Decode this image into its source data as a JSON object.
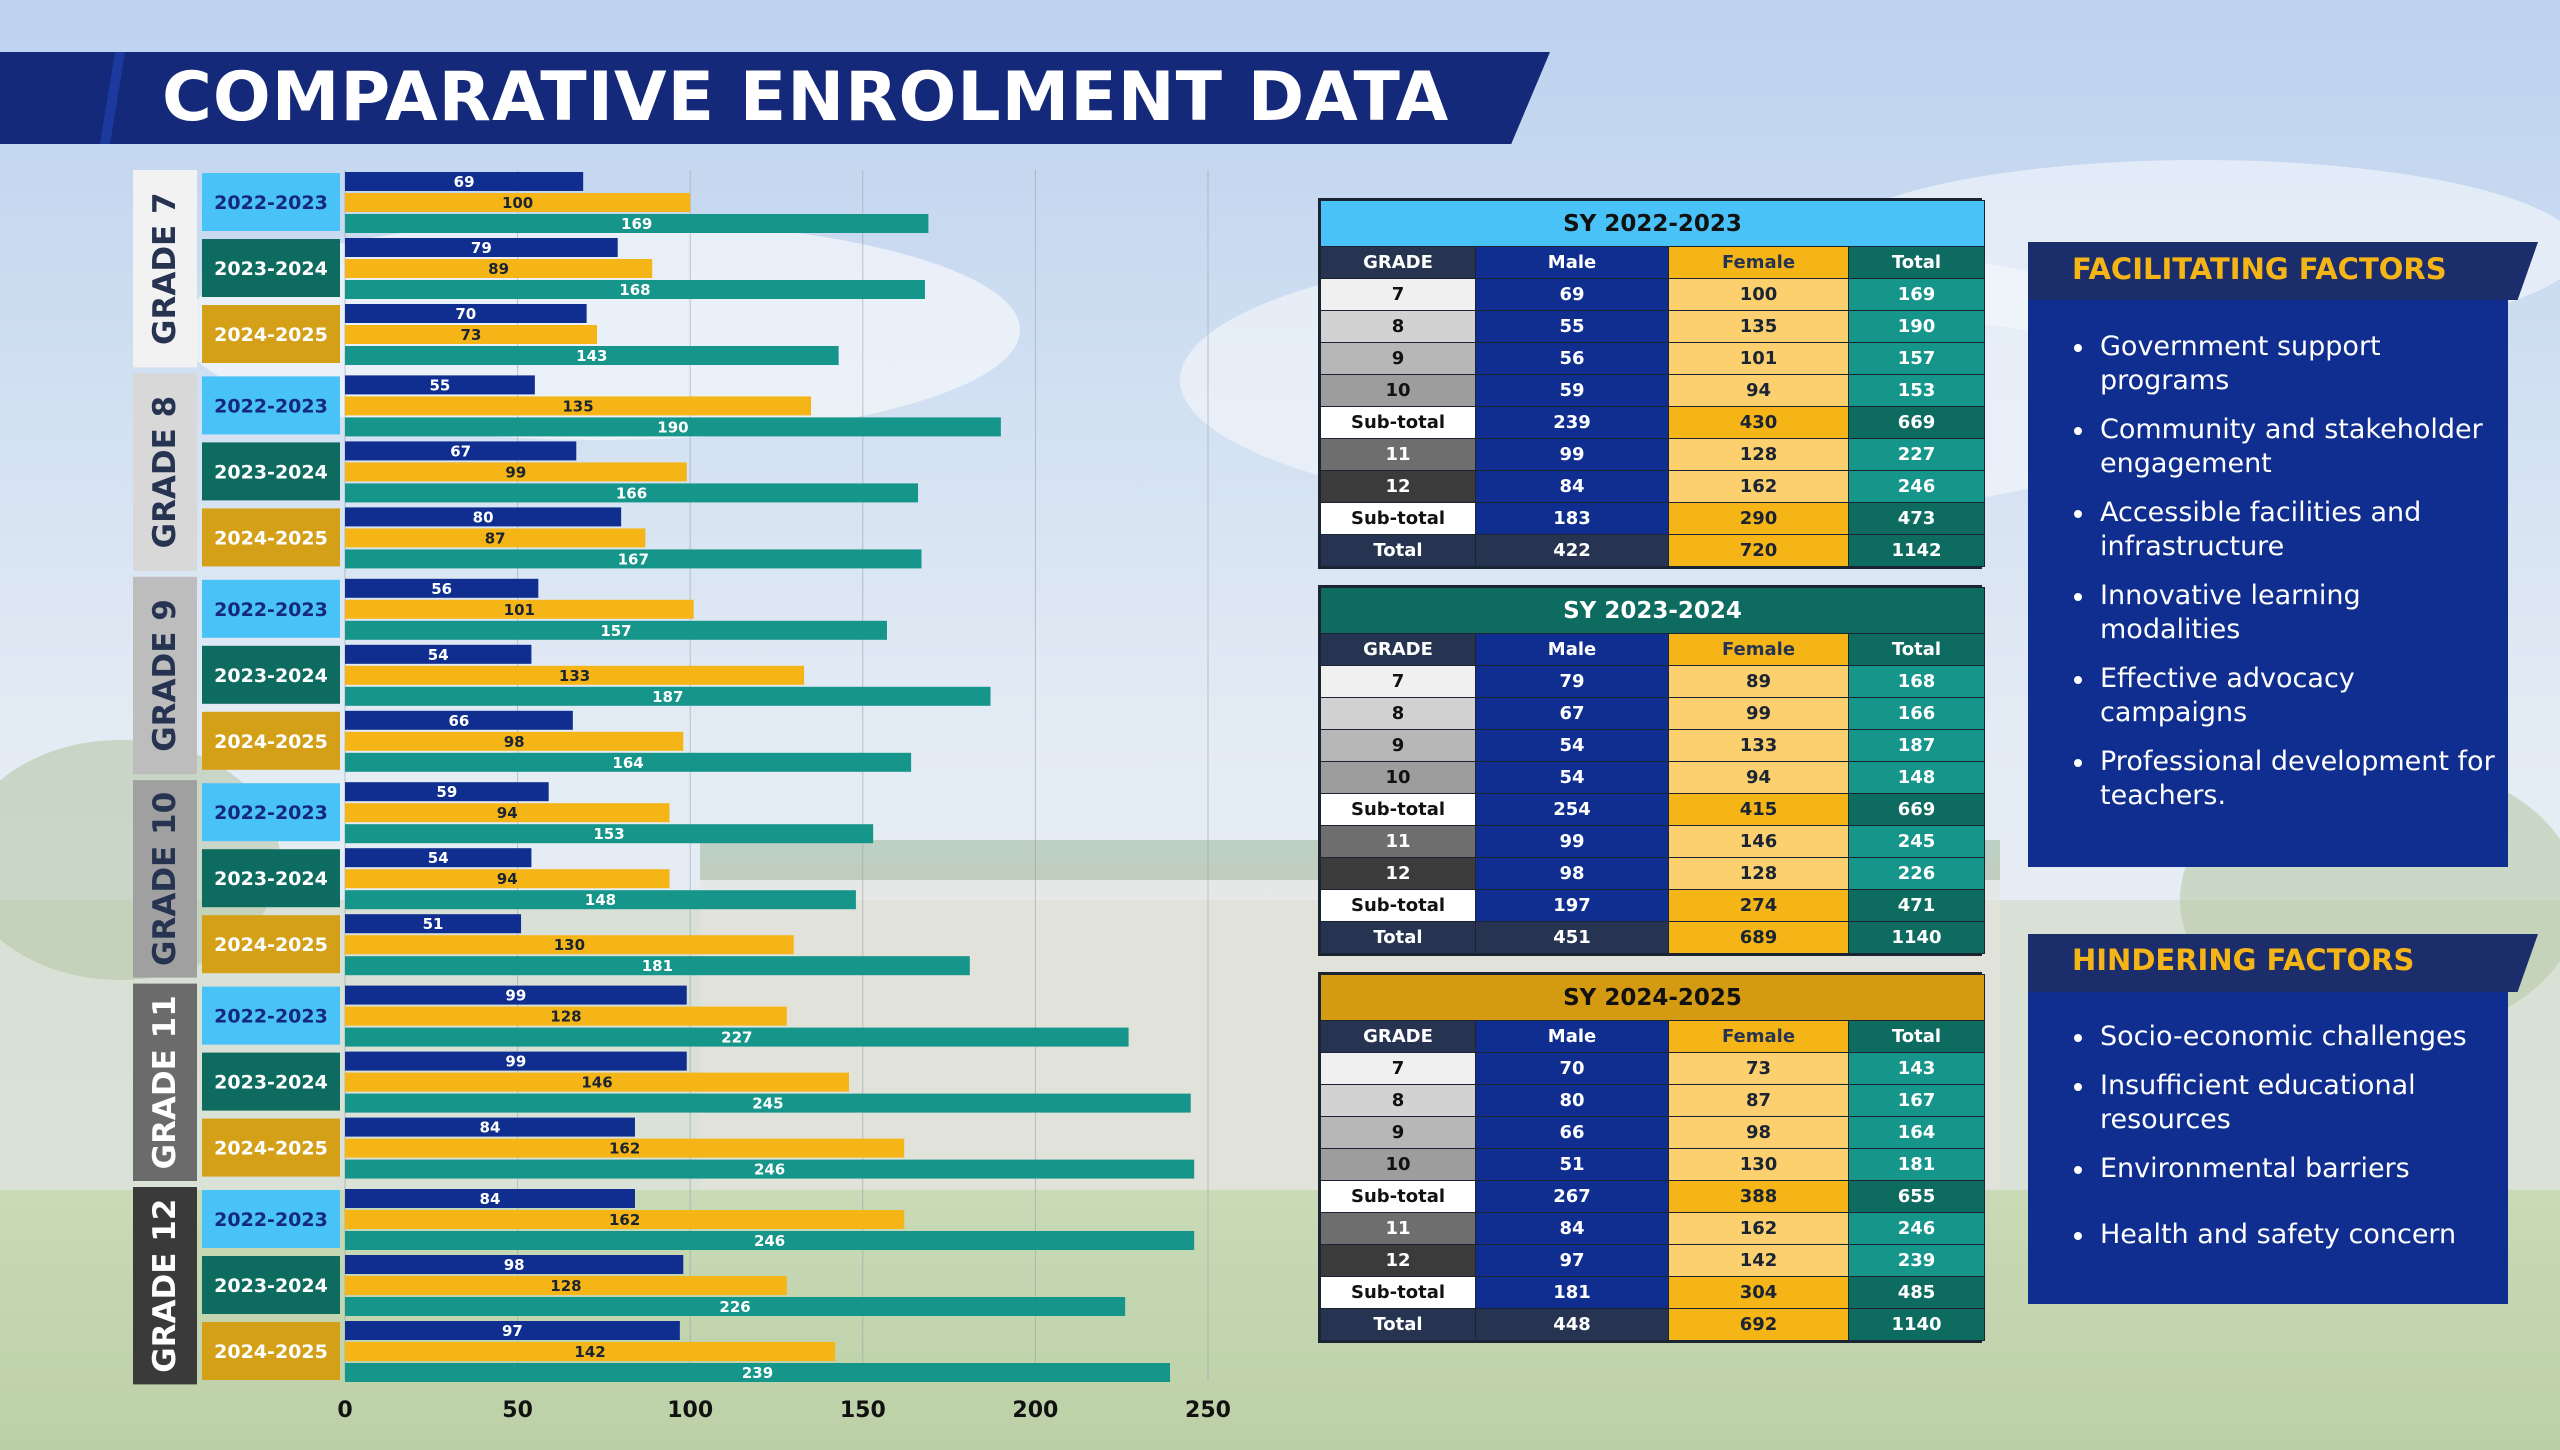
{
  "title": "COMPARATIVE ENROLMENT DATA",
  "colors": {
    "male": "#0f2e8f",
    "female": "#f6b516",
    "total": "#16958a",
    "y2022": "#49c2f8",
    "y2023": "#0e6b60",
    "y2024": "#d4a017",
    "navy": "#14297a"
  },
  "chart_data": {
    "type": "bar",
    "orientation": "horizontal",
    "xlim": [
      0,
      250
    ],
    "xticks": [
      "0",
      "50",
      "100",
      "150",
      "200",
      "250"
    ],
    "series_names": [
      "Male",
      "Female",
      "Total"
    ],
    "groups": [
      {
        "label": "GRADE 7",
        "rows": [
          {
            "year": "2022-2023",
            "male": 69,
            "female": 100,
            "total": 169
          },
          {
            "year": "2023-2024",
            "male": 79,
            "female": 89,
            "total": 168
          },
          {
            "year": "2024-2025",
            "male": 70,
            "female": 73,
            "total": 143
          }
        ]
      },
      {
        "label": "GRADE 8",
        "rows": [
          {
            "year": "2022-2023",
            "male": 55,
            "female": 135,
            "total": 190
          },
          {
            "year": "2023-2024",
            "male": 67,
            "female": 99,
            "total": 166
          },
          {
            "year": "2024-2025",
            "male": 80,
            "female": 87,
            "total": 167
          }
        ]
      },
      {
        "label": "GRADE 9",
        "rows": [
          {
            "year": "2022-2023",
            "male": 56,
            "female": 101,
            "total": 157
          },
          {
            "year": "2023-2024",
            "male": 54,
            "female": 133,
            "total": 187
          },
          {
            "year": "2024-2025",
            "male": 66,
            "female": 98,
            "total": 164
          }
        ]
      },
      {
        "label": "GRADE 10",
        "rows": [
          {
            "year": "2022-2023",
            "male": 59,
            "female": 94,
            "total": 153
          },
          {
            "year": "2023-2024",
            "male": 54,
            "female": 94,
            "total": 148
          },
          {
            "year": "2024-2025",
            "male": 51,
            "female": 130,
            "total": 181
          }
        ]
      },
      {
        "label": "GRADE 11",
        "rows": [
          {
            "year": "2022-2023",
            "male": 99,
            "female": 128,
            "total": 227
          },
          {
            "year": "2023-2024",
            "male": 99,
            "female": 146,
            "total": 245
          },
          {
            "year": "2024-2025",
            "male": 84,
            "female": 162,
            "total": 246
          }
        ]
      },
      {
        "label": "GRADE 12",
        "rows": [
          {
            "year": "2022-2023",
            "male": 84,
            "female": 162,
            "total": 246
          },
          {
            "year": "2023-2024",
            "male": 98,
            "female": 128,
            "total": 226
          },
          {
            "year": "2024-2025",
            "male": 97,
            "female": 142,
            "total": 239
          }
        ]
      }
    ]
  },
  "tables": [
    {
      "title": "SY 2022-2023",
      "head_color": "#49c2f8",
      "headers": [
        "GRADE",
        "Male",
        "Female",
        "Total"
      ],
      "rows": [
        [
          "7",
          "69",
          "100",
          "169"
        ],
        [
          "8",
          "55",
          "135",
          "190"
        ],
        [
          "9",
          "56",
          "101",
          "157"
        ],
        [
          "10",
          "59",
          "94",
          "153"
        ],
        [
          "Sub-total",
          "239",
          "430",
          "669"
        ],
        [
          "11",
          "99",
          "128",
          "227"
        ],
        [
          "12",
          "84",
          "162",
          "246"
        ],
        [
          "Sub-total",
          "183",
          "290",
          "473"
        ],
        [
          "Total",
          "422",
          "720",
          "1142"
        ]
      ]
    },
    {
      "title": "SY 2023-2024",
      "head_color": "#0e6b60",
      "headers": [
        "GRADE",
        "Male",
        "Female",
        "Total"
      ],
      "rows": [
        [
          "7",
          "79",
          "89",
          "168"
        ],
        [
          "8",
          "67",
          "99",
          "166"
        ],
        [
          "9",
          "54",
          "133",
          "187"
        ],
        [
          "10",
          "54",
          "94",
          "148"
        ],
        [
          "Sub-total",
          "254",
          "415",
          "669"
        ],
        [
          "11",
          "99",
          "146",
          "245"
        ],
        [
          "12",
          "98",
          "128",
          "226"
        ],
        [
          "Sub-total",
          "197",
          "274",
          "471"
        ],
        [
          "Total",
          "451",
          "689",
          "1140"
        ]
      ]
    },
    {
      "title": "SY 2024-2025",
      "head_color": "#d49a12",
      "headers": [
        "GRADE",
        "Male",
        "Female",
        "Total"
      ],
      "rows": [
        [
          "7",
          "70",
          "73",
          "143"
        ],
        [
          "8",
          "80",
          "87",
          "167"
        ],
        [
          "9",
          "66",
          "98",
          "164"
        ],
        [
          "10",
          "51",
          "130",
          "181"
        ],
        [
          "Sub-total",
          "267",
          "388",
          "655"
        ],
        [
          "11",
          "84",
          "162",
          "246"
        ],
        [
          "12",
          "97",
          "142",
          "239"
        ],
        [
          "Sub-total",
          "181",
          "304",
          "485"
        ],
        [
          "Total",
          "448",
          "692",
          "1140"
        ]
      ]
    }
  ],
  "facilitating": {
    "title": "FACILITATING FACTORS",
    "items": [
      "Government support programs",
      "Community and stakeholder engagement",
      "Accessible facilities and infrastructure",
      "Innovative learning modalities",
      "Effective advocacy campaigns",
      "Professional development for teachers."
    ]
  },
  "hindering": {
    "title": "HINDERING FACTORS",
    "items": [
      "Socio-economic challenges",
      "Insufficient educational resources",
      "Environmental barriers",
      "Health and safety concern"
    ]
  }
}
